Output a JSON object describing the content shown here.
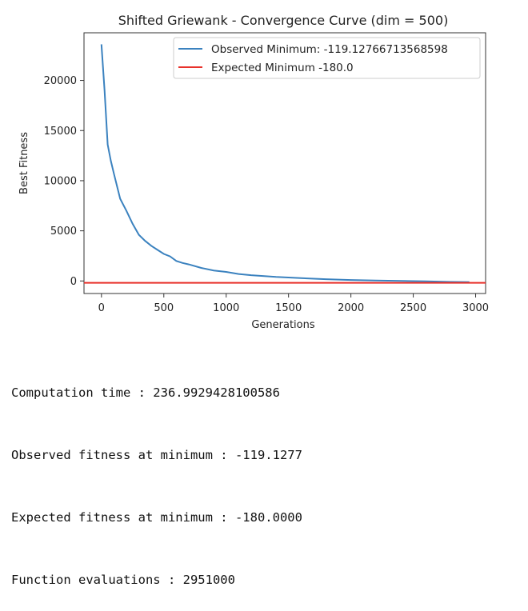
{
  "chart_data": {
    "type": "line",
    "title": "Shifted Griewank - Convergence Curve (dim = 500)",
    "xlabel": "Generations",
    "ylabel": "Best Fitness",
    "xlim": [
      -140,
      3080
    ],
    "ylim": [
      -1250,
      24750
    ],
    "xticks": [
      0,
      500,
      1000,
      1500,
      2000,
      2500,
      3000
    ],
    "yticks": [
      0,
      5000,
      10000,
      15000,
      20000
    ],
    "grid": false,
    "legend_position": "top-right",
    "series": [
      {
        "name": "Observed Minimum: -119.12766713568598",
        "color": "#3b82bf",
        "x": [
          0,
          25,
          50,
          75,
          100,
          150,
          200,
          250,
          300,
          350,
          400,
          450,
          500,
          550,
          600,
          650,
          700,
          800,
          900,
          1000,
          1100,
          1200,
          1400,
          1600,
          1800,
          2000,
          2200,
          2400,
          2600,
          2800,
          2950
        ],
        "y": [
          23600,
          19000,
          13600,
          12000,
          10700,
          8200,
          7000,
          5700,
          4600,
          4000,
          3500,
          3100,
          2700,
          2450,
          2000,
          1800,
          1650,
          1300,
          1050,
          900,
          700,
          580,
          400,
          280,
          180,
          100,
          50,
          10,
          -40,
          -90,
          -119.13
        ]
      },
      {
        "name": "Expected Minimum -180.0",
        "color": "#e8322b",
        "constant": -180
      }
    ]
  },
  "console": {
    "lines": [
      "Computation time : 236.9929428100586",
      "Observed fitness at minimum : -119.1277",
      "Expected fitness at minimum : -180.0000",
      "Function evaluations : 2951000"
    ]
  }
}
